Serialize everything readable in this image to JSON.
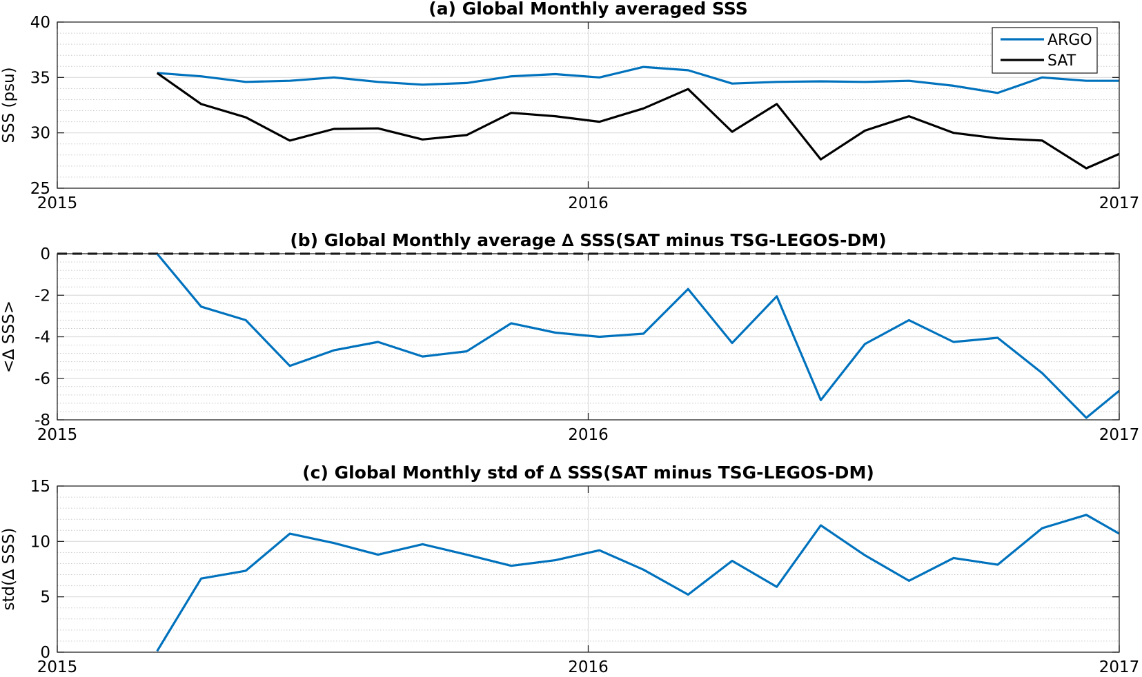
{
  "chart_data": [
    {
      "type": "line",
      "title": "(a) Global Monthly averaged SSS",
      "xlabel": "",
      "ylabel": "SSS (psu)",
      "xlim": [
        2015,
        2017
      ],
      "ylim": [
        25,
        40
      ],
      "xticks": [
        2015,
        2016,
        2017
      ],
      "xtick_labels": [
        "2015",
        "2016",
        "2017"
      ],
      "yticks": [
        25,
        30,
        35,
        40
      ],
      "ytick_labels": [
        "25",
        "30",
        "35",
        "40"
      ],
      "grid": true,
      "minor_grid": true,
      "legend": "top-right",
      "x": [
        2015.188,
        2015.271,
        2015.355,
        2015.438,
        2015.521,
        2015.604,
        2015.688,
        2015.771,
        2015.855,
        2015.938,
        2016.021,
        2016.104,
        2016.188,
        2016.271,
        2016.355,
        2016.438,
        2016.521,
        2016.604,
        2016.688,
        2016.771,
        2016.855,
        2016.938,
        2017.0
      ],
      "series": [
        {
          "name": "ARGO",
          "color": "#0072BD",
          "values": [
            35.4,
            35.1,
            34.6,
            34.7,
            35.0,
            34.6,
            34.35,
            34.5,
            35.1,
            35.3,
            35.0,
            35.95,
            35.65,
            34.45,
            34.6,
            34.65,
            34.6,
            34.7,
            34.25,
            33.6,
            35.0,
            34.7,
            34.7
          ]
        },
        {
          "name": "SAT",
          "color": "#000000",
          "values": [
            35.4,
            32.6,
            31.4,
            29.3,
            30.35,
            30.4,
            29.4,
            29.8,
            31.8,
            31.5,
            31.0,
            32.2,
            33.95,
            30.1,
            32.6,
            27.6,
            30.2,
            31.5,
            30.0,
            29.5,
            29.3,
            26.8,
            28.1
          ]
        }
      ]
    },
    {
      "type": "line",
      "title": "(b) Global Monthly average ∆ SSS(SAT minus TSG-LEGOS-DM)",
      "xlabel": "",
      "ylabel": "<∆ SSS>",
      "xlim": [
        2015,
        2017
      ],
      "ylim": [
        -8,
        0
      ],
      "xticks": [
        2015,
        2016,
        2017
      ],
      "xtick_labels": [
        "2015",
        "2016",
        "2017"
      ],
      "yticks": [
        -8,
        -6,
        -4,
        -2,
        0
      ],
      "ytick_labels": [
        "-8",
        "-6",
        "-4",
        "-2",
        "0"
      ],
      "grid": true,
      "minor_grid": true,
      "reference_line": {
        "y": 0,
        "style": "dashed",
        "color": "#000000"
      },
      "x": [
        2015.188,
        2015.271,
        2015.355,
        2015.438,
        2015.521,
        2015.604,
        2015.688,
        2015.771,
        2015.855,
        2015.938,
        2016.021,
        2016.104,
        2016.188,
        2016.271,
        2016.355,
        2016.438,
        2016.521,
        2016.604,
        2016.688,
        2016.771,
        2016.855,
        2016.938,
        2017.0
      ],
      "series": [
        {
          "color": "#0072BD",
          "values": [
            0.0,
            -2.55,
            -3.2,
            -5.4,
            -4.65,
            -4.25,
            -4.95,
            -4.7,
            -3.35,
            -3.8,
            -4.0,
            -3.85,
            -1.7,
            -4.3,
            -2.05,
            -7.05,
            -4.35,
            -3.2,
            -4.25,
            -4.05,
            -5.75,
            -7.9,
            -6.6
          ]
        }
      ]
    },
    {
      "type": "line",
      "title": "(c) Global Monthly std of ∆ SSS(SAT minus TSG-LEGOS-DM)",
      "xlabel": "",
      "ylabel": "std(∆ SSS)",
      "xlim": [
        2015,
        2017
      ],
      "ylim": [
        0,
        15
      ],
      "xticks": [
        2015,
        2016,
        2017
      ],
      "xtick_labels": [
        "2015",
        "2016",
        "2017"
      ],
      "yticks": [
        0,
        5,
        10,
        15
      ],
      "ytick_labels": [
        "0",
        "5",
        "10",
        "15"
      ],
      "grid": true,
      "minor_grid": true,
      "x": [
        2015.188,
        2015.271,
        2015.355,
        2015.438,
        2015.521,
        2015.604,
        2015.688,
        2015.771,
        2015.855,
        2015.938,
        2016.021,
        2016.104,
        2016.188,
        2016.271,
        2016.355,
        2016.438,
        2016.521,
        2016.604,
        2016.688,
        2016.771,
        2016.855,
        2016.938,
        2017.0
      ],
      "series": [
        {
          "color": "#0072BD",
          "values": [
            0.1,
            6.65,
            7.35,
            10.7,
            9.85,
            8.8,
            9.75,
            8.8,
            7.8,
            8.3,
            9.2,
            7.45,
            5.2,
            8.25,
            5.9,
            11.45,
            8.75,
            6.45,
            8.5,
            7.9,
            11.2,
            12.4,
            10.7
          ]
        }
      ]
    }
  ]
}
